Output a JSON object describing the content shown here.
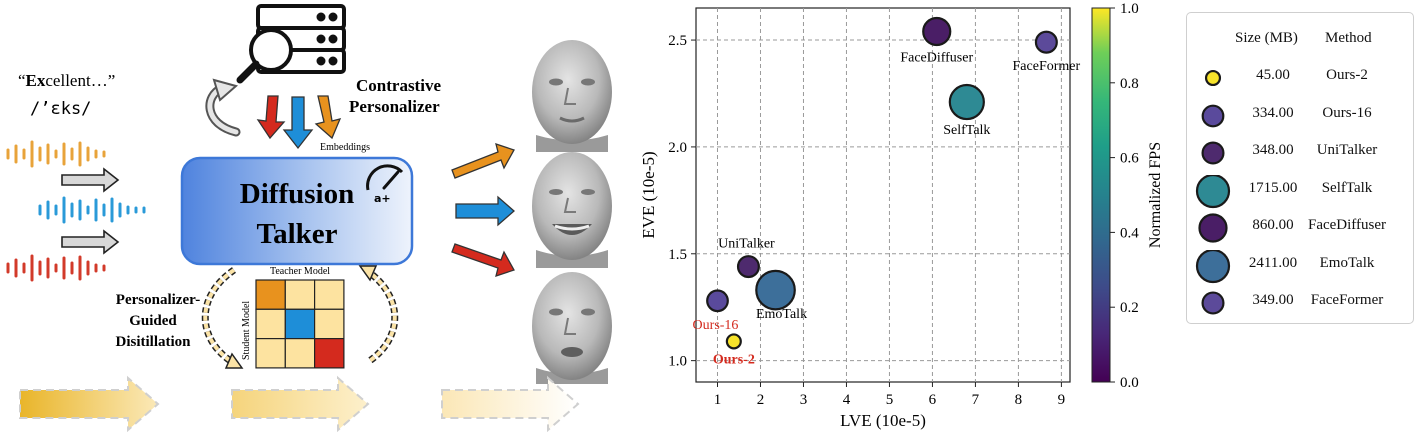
{
  "diagram": {
    "quote_text": "“Excellent…”",
    "quote_bold_part": "Ex",
    "quote_rest": "cellent…”",
    "quote_open": "“",
    "phonetic": "/’ɛks/",
    "contrastive_label_line1": "Contrastive",
    "contrastive_label_line2": "Personalizer",
    "embeddings_label": "Embeddings",
    "model_title_line1": "Diffusion",
    "model_title_line2": "Talker",
    "speed_badge": "a+",
    "teacher_label": "Teacher Model",
    "student_label": "Student Model",
    "distill_label_line1": "Personalizer-",
    "distill_label_line2": "Guided",
    "distill_label_line3": "Disitillation",
    "colors": {
      "orange": "#e8921e",
      "blue": "#1e8ed8",
      "red": "#d42a1e",
      "model_box_start": "#5b8ee0",
      "cell_fill": "#fde3a0"
    }
  },
  "chart_data": {
    "type": "scatter",
    "xlabel": "LVE (10e-5)",
    "ylabel": "EVE (10e-5)",
    "colorbar_label": "Normalized FPS",
    "xlim": [
      0.5,
      9.2
    ],
    "ylim": [
      0.9,
      2.65
    ],
    "xticks": [
      "1",
      "2",
      "3",
      "4",
      "5",
      "6",
      "7",
      "8",
      "9"
    ],
    "yticks": [
      "1.0",
      "1.5",
      "2.0",
      "2.5"
    ],
    "colorbar_ticks": [
      "0.0",
      "0.2",
      "0.4",
      "0.6",
      "0.8",
      "1.0"
    ],
    "grid": true,
    "colormap": "viridis",
    "points": [
      {
        "name": "Ours-2",
        "lve": 1.38,
        "eve": 1.09,
        "size_mb": 45.0,
        "fps_norm": 1.0,
        "color": "#f7e32a",
        "highlight": true
      },
      {
        "name": "Ours-16",
        "lve": 1.0,
        "eve": 1.28,
        "size_mb": 334.0,
        "fps_norm": 0.15,
        "color": "#5a4a9c",
        "highlight": true
      },
      {
        "name": "UniTalker",
        "lve": 1.72,
        "eve": 1.44,
        "size_mb": 348.0,
        "fps_norm": 0.05,
        "color": "#4e2a6e",
        "highlight": false
      },
      {
        "name": "SelfTalk",
        "lve": 6.8,
        "eve": 2.21,
        "size_mb": 1715.0,
        "fps_norm": 0.45,
        "color": "#2e8a94",
        "highlight": false
      },
      {
        "name": "FaceDiffuser",
        "lve": 6.1,
        "eve": 2.54,
        "size_mb": 860.0,
        "fps_norm": 0.02,
        "color": "#4a1e66",
        "highlight": false
      },
      {
        "name": "EmoTalk",
        "lve": 2.35,
        "eve": 1.33,
        "size_mb": 2411.0,
        "fps_norm": 0.35,
        "color": "#3d6f9a",
        "highlight": false
      },
      {
        "name": "FaceFormer",
        "lve": 8.65,
        "eve": 2.49,
        "size_mb": 349.0,
        "fps_norm": 0.12,
        "color": "#5c4a9a",
        "highlight": false
      }
    ],
    "legend": {
      "col1": "Size (MB)",
      "col2": "Method",
      "rows": [
        {
          "size": "45.00",
          "method": "Ours-2"
        },
        {
          "size": "334.00",
          "method": "Ours-16"
        },
        {
          "size": "348.00",
          "method": "UniTalker"
        },
        {
          "size": "1715.00",
          "method": "SelfTalk"
        },
        {
          "size": "860.00",
          "method": "FaceDiffuser"
        },
        {
          "size": "2411.00",
          "method": "EmoTalk"
        },
        {
          "size": "349.00",
          "method": "FaceFormer"
        }
      ]
    }
  }
}
